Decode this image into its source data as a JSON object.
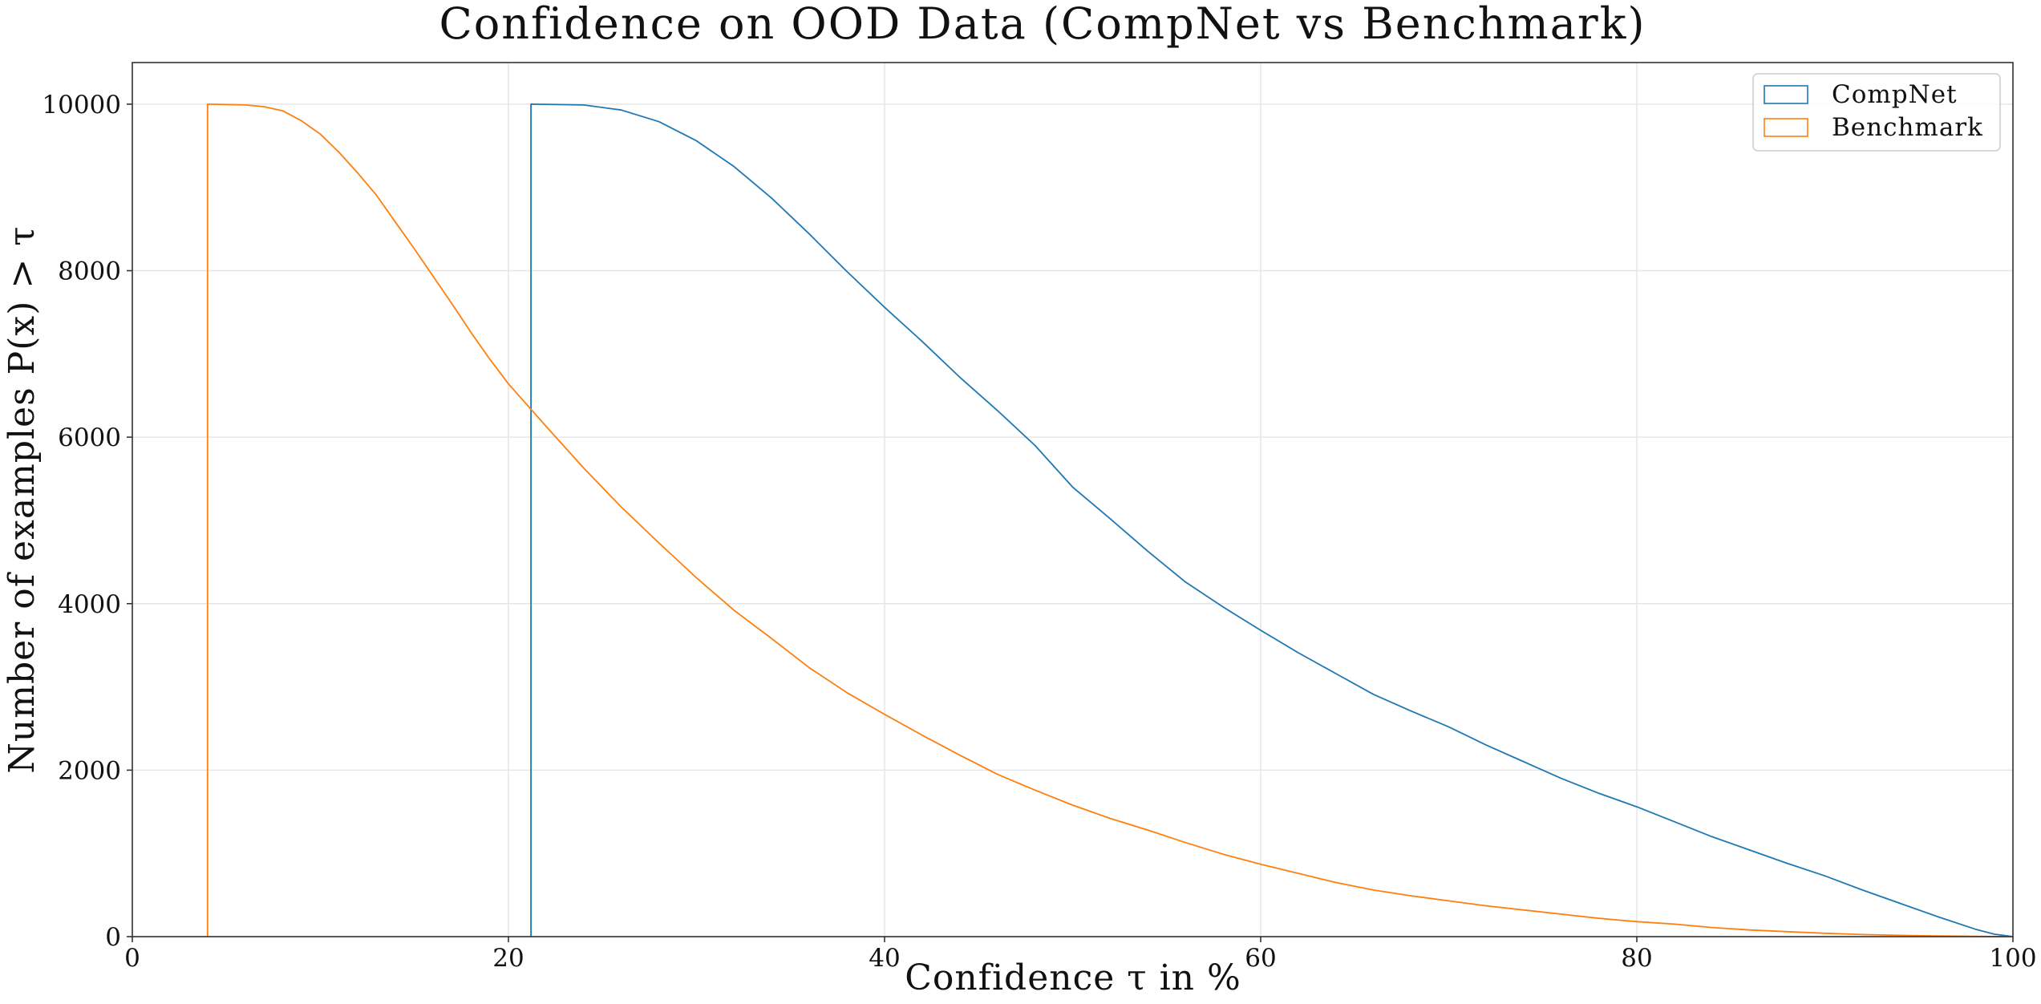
{
  "chart_data": {
    "type": "line",
    "title": "Confidence on OOD Data (CompNet vs Benchmark)",
    "xlabel": "Confidence τ in %",
    "ylabel": "Number of examples P(x) > τ",
    "xlim": [
      0,
      100
    ],
    "ylim": [
      0,
      10500
    ],
    "xticks": [
      0,
      20,
      40,
      60,
      80,
      100
    ],
    "yticks": [
      0,
      2000,
      4000,
      6000,
      8000,
      10000
    ],
    "grid": true,
    "legend": "top-right",
    "series": [
      {
        "name": "CompNet",
        "color": "#1f77b4",
        "x": [
          21.2,
          21.2,
          24,
          26,
          28,
          30,
          32,
          34,
          36,
          38,
          40,
          42,
          44,
          46,
          48,
          50,
          52,
          54,
          56,
          58,
          60,
          62,
          64,
          66,
          68,
          70,
          72,
          74,
          76,
          78,
          80,
          82,
          84,
          86,
          88,
          90,
          92,
          94,
          96,
          98,
          99,
          100
        ],
        "y": [
          0,
          10000,
          9990,
          9930,
          9790,
          9560,
          9250,
          8870,
          8440,
          7990,
          7560,
          7150,
          6720,
          6320,
          5900,
          5400,
          5020,
          4630,
          4260,
          3960,
          3680,
          3410,
          3160,
          2910,
          2710,
          2520,
          2300,
          2100,
          1900,
          1720,
          1560,
          1380,
          1200,
          1040,
          880,
          730,
          560,
          400,
          240,
          90,
          30,
          0
        ]
      },
      {
        "name": "Benchmark",
        "color": "#ff7f0e",
        "x": [
          4,
          4,
          6,
          7,
          8,
          9,
          10,
          11,
          12,
          13,
          14,
          15,
          16,
          17,
          18,
          19,
          20,
          22,
          24,
          26,
          28,
          30,
          32,
          34,
          36,
          38,
          40,
          42,
          44,
          46,
          48,
          50,
          52,
          54,
          56,
          58,
          60,
          62,
          64,
          66,
          68,
          70,
          72,
          74,
          76,
          78,
          80,
          82,
          84,
          86,
          88,
          90,
          92,
          94,
          96,
          98,
          100
        ],
        "y": [
          0,
          10000,
          9990,
          9970,
          9920,
          9800,
          9640,
          9420,
          9170,
          8900,
          8580,
          8260,
          7930,
          7600,
          7260,
          6940,
          6640,
          6130,
          5630,
          5160,
          4730,
          4310,
          3920,
          3580,
          3230,
          2930,
          2670,
          2420,
          2180,
          1950,
          1760,
          1580,
          1420,
          1280,
          1130,
          990,
          870,
          760,
          650,
          560,
          490,
          430,
          370,
          320,
          270,
          220,
          180,
          150,
          110,
          80,
          60,
          40,
          25,
          15,
          8,
          3,
          0
        ]
      }
    ]
  }
}
